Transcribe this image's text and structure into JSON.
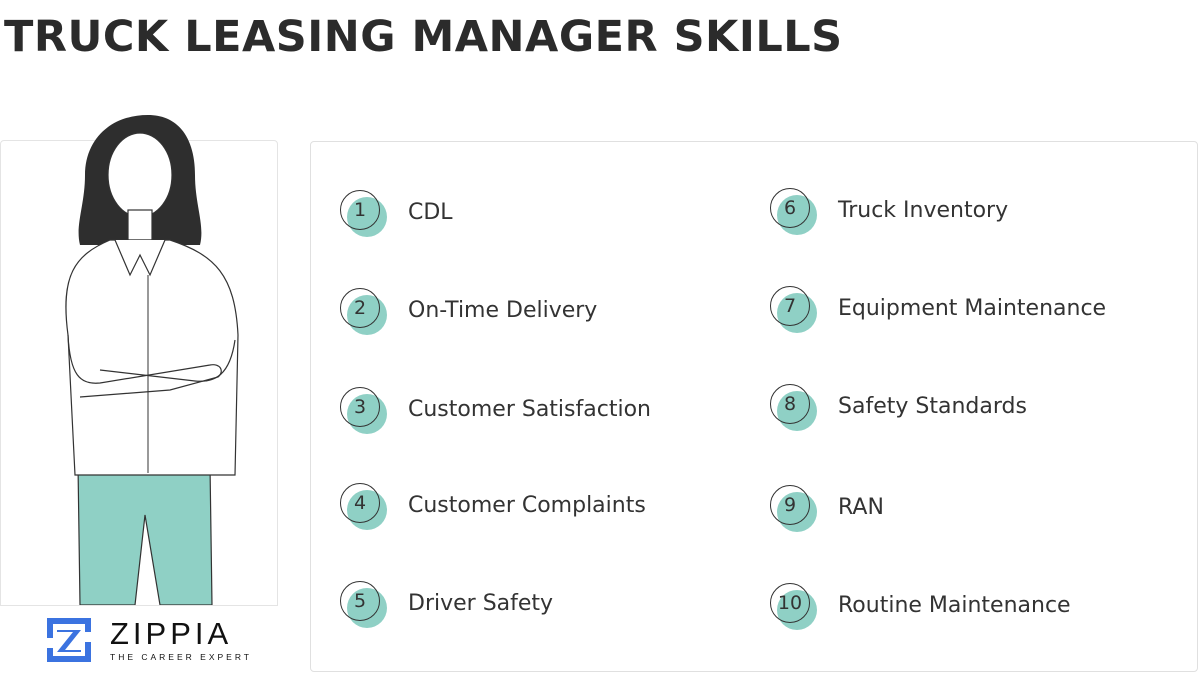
{
  "title": "TRUCK LEASING MANAGER SKILLS",
  "accent_color": "#8fd0c5",
  "logo": {
    "name": "ZIPPIA",
    "tagline": "THE CAREER EXPERT",
    "color": "#3b73e0"
  },
  "skills": [
    {
      "num": "1",
      "label": "CDL"
    },
    {
      "num": "2",
      "label": "On-Time Delivery"
    },
    {
      "num": "3",
      "label": "Customer Satisfaction"
    },
    {
      "num": "4",
      "label": "Customer Complaints"
    },
    {
      "num": "5",
      "label": "Driver Safety"
    },
    {
      "num": "6",
      "label": "Truck Inventory"
    },
    {
      "num": "7",
      "label": "Equipment Maintenance"
    },
    {
      "num": "8",
      "label": "Safety Standards"
    },
    {
      "num": "9",
      "label": "RAN"
    },
    {
      "num": "10",
      "label": "Routine Maintenance"
    }
  ]
}
